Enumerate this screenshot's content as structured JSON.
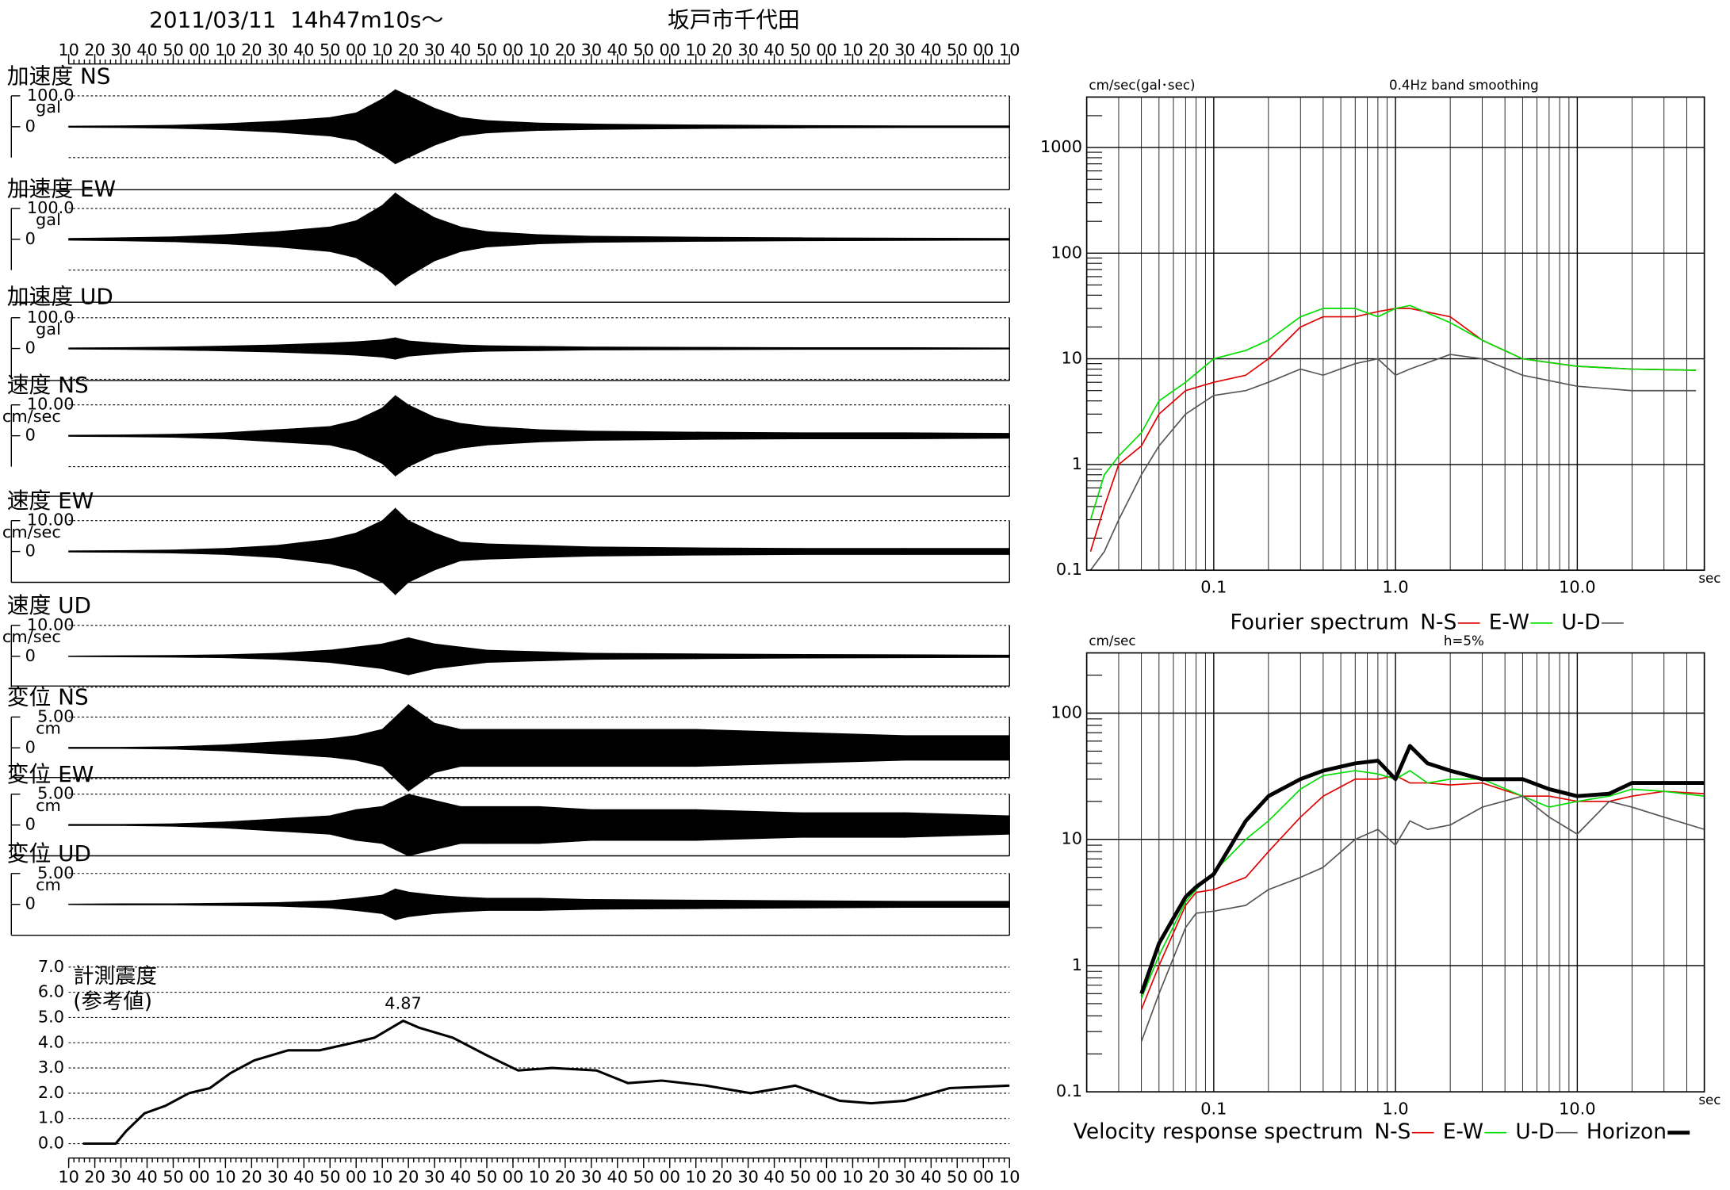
{
  "header": {
    "date": "2011/03/11  14h47m10s〜",
    "station": "坂戸市千代田"
  },
  "chart_data": [
    {
      "type": "waveform",
      "xlim": [
        0,
        360
      ],
      "xticks": [
        {
          "value": 0,
          "label": "10"
        },
        {
          "value": 10,
          "label": "20"
        },
        {
          "value": 20,
          "label": "30"
        },
        {
          "value": 30,
          "label": "40"
        },
        {
          "value": 40,
          "label": "50"
        },
        {
          "value": 50,
          "label": "00"
        },
        {
          "value": 60,
          "label": "10"
        },
        {
          "value": 70,
          "label": "20"
        },
        {
          "value": 80,
          "label": "30"
        },
        {
          "value": 90,
          "label": "40"
        },
        {
          "value": 100,
          "label": "50"
        },
        {
          "value": 110,
          "label": "00"
        },
        {
          "value": 120,
          "label": "10"
        },
        {
          "value": 130,
          "label": "20"
        },
        {
          "value": 140,
          "label": "30"
        },
        {
          "value": 150,
          "label": "40"
        },
        {
          "value": 160,
          "label": "50"
        },
        {
          "value": 170,
          "label": "00"
        },
        {
          "value": 180,
          "label": "10"
        },
        {
          "value": 190,
          "label": "20"
        },
        {
          "value": 200,
          "label": "30"
        },
        {
          "value": 210,
          "label": "40"
        },
        {
          "value": 220,
          "label": "50"
        },
        {
          "value": 230,
          "label": "00"
        },
        {
          "value": 240,
          "label": "10"
        },
        {
          "value": 250,
          "label": "20"
        },
        {
          "value": 260,
          "label": "30"
        },
        {
          "value": 270,
          "label": "40"
        },
        {
          "value": 280,
          "label": "50"
        },
        {
          "value": 290,
          "label": "00"
        },
        {
          "value": 300,
          "label": "10"
        },
        {
          "value": 310,
          "label": "20"
        },
        {
          "value": 320,
          "label": "30"
        },
        {
          "value": 330,
          "label": "40"
        },
        {
          "value": 340,
          "label": "50"
        },
        {
          "value": 350,
          "label": "00"
        },
        {
          "value": 360,
          "label": "10"
        }
      ],
      "x": [
        0,
        20,
        40,
        60,
        80,
        100,
        110,
        120,
        125,
        130,
        140,
        150,
        160,
        180,
        200,
        240,
        280,
        320,
        360
      ],
      "series": [
        {
          "name": "加速度 NS",
          "unit": "gal",
          "color": "#000000",
          "ylim": [
            -204,
            139
          ],
          "yticks": [
            0,
            {
              "value": 100,
              "label": "100.0"
            }
          ],
          "ygrid": [
            100,
            -100
          ],
          "values": [
            2,
            3,
            5,
            10,
            18,
            30,
            45,
            90,
            120,
            100,
            60,
            30,
            20,
            12,
            9,
            6,
            4,
            3,
            3
          ]
        },
        {
          "name": "加速度 EW",
          "unit": "gal",
          "color": "#000000",
          "ylim": [
            -204,
            175
          ],
          "yticks": [
            0,
            {
              "value": 100,
              "label": "100.0"
            }
          ],
          "ygrid": [
            100,
            -100
          ],
          "values": [
            3,
            5,
            8,
            15,
            25,
            40,
            60,
            110,
            150,
            120,
            70,
            40,
            25,
            15,
            10,
            7,
            5,
            4,
            3
          ]
        },
        {
          "name": "加速度 UD",
          "unit": "gal",
          "color": "#000000",
          "ylim": [
            -104,
            129
          ],
          "yticks": [
            0,
            {
              "value": 100,
              "label": "100.0"
            }
          ],
          "ygrid": [
            100,
            -100
          ],
          "values": [
            2,
            3,
            5,
            8,
            12,
            18,
            22,
            28,
            35,
            25,
            18,
            12,
            9,
            7,
            5,
            4,
            3,
            3,
            2
          ]
        },
        {
          "name": "速度 NS",
          "unit": "cm/sec",
          "color": "#000000",
          "ylim": [
            -19.6,
            15.4
          ],
          "yticks": [
            0,
            {
              "value": 10,
              "label": "10.00"
            }
          ],
          "ygrid": [
            10,
            -10
          ],
          "values": [
            0.2,
            0.3,
            0.5,
            1,
            2,
            3,
            5,
            9,
            13,
            10,
            6,
            4,
            3,
            2,
            1.5,
            1.2,
            1,
            1,
            0.8
          ]
        },
        {
          "name": "速度 EW",
          "unit": "cm/sec",
          "color": "#000000",
          "ylim": [
            -10,
            16.1
          ],
          "yticks": [
            0,
            {
              "value": 10,
              "label": "10.00"
            }
          ],
          "ygrid": [
            10,
            -10
          ],
          "values": [
            0.2,
            0.3,
            0.5,
            1,
            2,
            4,
            6,
            10,
            14,
            10,
            6,
            3,
            2.5,
            2,
            1.5,
            1.2,
            1,
            1,
            1
          ]
        },
        {
          "name": "速度 UD",
          "unit": "cm/sec",
          "color": "#000000",
          "ylim": [
            -9.6,
            12.5
          ],
          "yticks": [
            0,
            {
              "value": 10,
              "label": "10.00"
            }
          ],
          "ygrid": [
            10,
            -10
          ],
          "values": [
            0.1,
            0.2,
            0.3,
            0.5,
            1,
            2,
            3,
            4,
            5,
            6,
            4,
            3,
            2,
            1.5,
            1,
            0.8,
            0.6,
            0.5,
            0.4
          ]
        },
        {
          "name": "変位 NS",
          "unit": "cm",
          "color": "#000000",
          "ylim": [
            -4.8,
            7.7
          ],
          "yticks": [
            0,
            {
              "value": 5,
              "label": "5.00"
            }
          ],
          "ygrid": [
            5,
            -5
          ],
          "values": [
            0.1,
            0.1,
            0.2,
            0.5,
            1,
            1.5,
            2,
            3,
            5,
            7,
            4,
            3,
            3,
            3,
            3,
            3,
            2.5,
            2,
            2
          ]
        },
        {
          "name": "変位 EW",
          "unit": "cm",
          "color": "#000000",
          "ylim": [
            -5,
            7.7
          ],
          "yticks": [
            0,
            {
              "value": 5,
              "label": "5.00"
            }
          ],
          "ygrid": [
            5,
            -5
          ],
          "values": [
            0.1,
            0.1,
            0.2,
            0.5,
            1,
            1.5,
            2.5,
            3,
            4,
            5,
            4,
            3,
            3,
            3,
            2.5,
            2.5,
            2,
            2,
            1.5
          ]
        },
        {
          "name": "変位 UD",
          "unit": "cm",
          "color": "#000000",
          "ylim": [
            -5,
            7.5
          ],
          "yticks": [
            0,
            {
              "value": 5,
              "label": "5.00"
            }
          ],
          "ygrid": [
            5,
            -5
          ],
          "values": [
            0.05,
            0.1,
            0.1,
            0.2,
            0.3,
            0.6,
            1,
            1.5,
            2.5,
            2,
            1.5,
            1.2,
            1,
            1,
            0.8,
            0.7,
            0.6,
            0.5,
            0.5
          ]
        }
      ]
    },
    {
      "type": "line",
      "title": "計測震度",
      "subtitle": "(参考値)",
      "color": "#000000",
      "xlim": [
        0,
        360
      ],
      "ylim": [
        -0.57,
        7.3
      ],
      "yticks": [
        {
          "value": 0,
          "label": "0.0"
        },
        {
          "value": 1,
          "label": "1.0"
        },
        {
          "value": 2,
          "label": "2.0"
        },
        {
          "value": 3,
          "label": "3.0"
        },
        {
          "value": 4,
          "label": "4.0"
        },
        {
          "value": 5,
          "label": "5.0"
        },
        {
          "value": 6,
          "label": "6.0"
        },
        {
          "value": 7,
          "label": "7.0"
        }
      ],
      "x": [
        5.5,
        18,
        22,
        29,
        37,
        46,
        54,
        62,
        71,
        84,
        96,
        109,
        117,
        128,
        134,
        147,
        160,
        172,
        185,
        202,
        214,
        227,
        244,
        261,
        278,
        295,
        307,
        320,
        337,
        360
      ],
      "values": [
        0,
        0,
        0.5,
        1.2,
        1.5,
        2.0,
        2.2,
        2.8,
        3.3,
        3.7,
        3.7,
        4.0,
        4.2,
        4.87,
        4.6,
        4.2,
        3.5,
        2.9,
        3.0,
        2.9,
        2.4,
        2.5,
        2.3,
        2.0,
        2.3,
        1.7,
        1.6,
        1.7,
        2.2,
        2.3
      ],
      "annotations": [
        {
          "text": "4.87",
          "x": 128,
          "y": 4.87
        }
      ]
    },
    {
      "type": "loglog",
      "title": "Fourier spectrum",
      "ylabel": "cm/sec(gal･sec)",
      "note": "0.4Hz band smoothing",
      "xunit": "sec",
      "log": true,
      "minor_grid": true,
      "xlim": [
        0.02,
        50
      ],
      "ylim": [
        0.1,
        3000
      ],
      "xticks": [
        0.1,
        {
          "value": 1,
          "label": "1.0"
        },
        {
          "value": 10,
          "label": "10.0"
        }
      ],
      "yticks": [
        0.1,
        1,
        10,
        100,
        1000
      ],
      "x": [
        0.021,
        0.025,
        0.03,
        0.04,
        0.05,
        0.07,
        0.1,
        0.15,
        0.2,
        0.3,
        0.4,
        0.6,
        0.8,
        1.0,
        1.2,
        2,
        3,
        5,
        10,
        20,
        45
      ],
      "series": [
        {
          "name": "N-S",
          "color": "#e00000",
          "width": 1.2,
          "values": [
            0.15,
            0.4,
            1,
            1.5,
            3,
            5,
            6,
            7,
            10,
            20,
            25,
            25,
            28,
            30,
            30,
            25,
            15,
            10,
            8.5,
            8,
            7.8
          ]
        },
        {
          "name": "E-W",
          "color": "#00dd00",
          "width": 1.2,
          "values": [
            0.3,
            0.8,
            1.2,
            2,
            4,
            6,
            10,
            12,
            15,
            25,
            30,
            30,
            25,
            30,
            32,
            22,
            15,
            10,
            8.5,
            8,
            7.8
          ]
        },
        {
          "name": "U-D",
          "color": "#555555",
          "width": 1.2,
          "values": [
            0.1,
            0.15,
            0.3,
            0.8,
            1.5,
            3,
            4.5,
            5,
            6,
            8,
            7,
            9,
            10,
            7,
            8,
            11,
            10,
            7,
            5.5,
            5,
            5
          ]
        }
      ]
    },
    {
      "type": "loglog",
      "title": "Velocity response spectrum",
      "ylabel": "cm/sec",
      "note": "h=5%",
      "xunit": "sec",
      "log": true,
      "minor_grid": true,
      "xlim": [
        0.02,
        50
      ],
      "ylim": [
        0.1,
        300
      ],
      "xticks": [
        0.1,
        {
          "value": 1,
          "label": "1.0"
        },
        {
          "value": 10,
          "label": "10.0"
        }
      ],
      "yticks": [
        0.1,
        1,
        10,
        100
      ],
      "x": [
        0.04,
        0.05,
        0.07,
        0.08,
        0.1,
        0.15,
        0.2,
        0.3,
        0.4,
        0.6,
        0.8,
        1.0,
        1.2,
        1.5,
        2,
        3,
        5,
        7,
        10,
        15,
        20,
        30,
        50
      ],
      "series": [
        {
          "name": "N-S",
          "color": "#e00000",
          "width": 1.2,
          "values": [
            0.45,
            1.0,
            3,
            3.8,
            4.0,
            5,
            8,
            15,
            22,
            30,
            30,
            32,
            28,
            28,
            27,
            28,
            22,
            22,
            20,
            20,
            22,
            24,
            23
          ]
        },
        {
          "name": "E-W",
          "color": "#00dd00",
          "width": 1.2,
          "values": [
            0.55,
            1.2,
            3.2,
            4.0,
            5.5,
            10,
            14,
            25,
            32,
            35,
            33,
            30,
            35,
            28,
            30,
            30,
            22,
            18,
            20,
            22,
            25,
            24,
            22
          ]
        },
        {
          "name": "U-D",
          "color": "#555555",
          "width": 1.2,
          "values": [
            0.25,
            0.6,
            2,
            2.6,
            2.7,
            3,
            4,
            5,
            6,
            10,
            12,
            9,
            14,
            12,
            13,
            18,
            22,
            15,
            11,
            20,
            18,
            15,
            12
          ]
        },
        {
          "name": "Horizon",
          "color": "#000000",
          "width": 3.5,
          "values": [
            0.6,
            1.5,
            3.5,
            4.2,
            5.3,
            14,
            22,
            30,
            35,
            40,
            42,
            30,
            55,
            40,
            35,
            30,
            30,
            25,
            22,
            23,
            28,
            28,
            28
          ]
        }
      ]
    }
  ]
}
